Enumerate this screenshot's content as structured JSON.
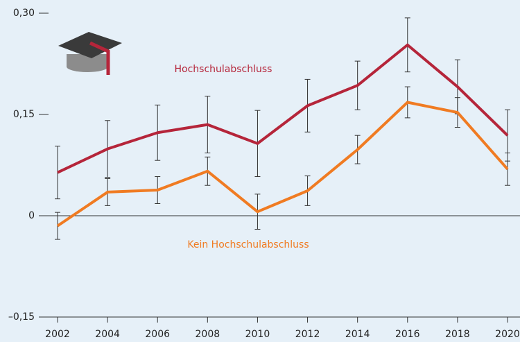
{
  "chart_data": {
    "type": "line",
    "x": [
      2002,
      2004,
      2006,
      2008,
      2010,
      2012,
      2014,
      2016,
      2018,
      2020
    ],
    "xlim": [
      2002,
      2020
    ],
    "xticks": [
      2002,
      2004,
      2006,
      2008,
      2010,
      2012,
      2014,
      2016,
      2018,
      2020
    ],
    "ylim": [
      -0.15,
      0.3
    ],
    "yticks": [
      {
        "value": -0.15,
        "label": "–0,15"
      },
      0,
      {
        "value": 0.15,
        "label": "0,15"
      },
      {
        "value": 0.3,
        "label": "0,30"
      }
    ],
    "series": [
      {
        "name": "Hochschulabschluss",
        "color": "#b5253a",
        "values": [
          0.064,
          0.099,
          0.123,
          0.135,
          0.107,
          0.163,
          0.193,
          0.253,
          0.191,
          0.119
        ],
        "errors": [
          0.039,
          0.042,
          0.041,
          0.042,
          0.049,
          0.039,
          0.036,
          0.04,
          0.04,
          0.038
        ]
      },
      {
        "name": "Kein Hochschulabschluss",
        "color": "#f07b22",
        "values": [
          -0.015,
          0.035,
          0.038,
          0.066,
          0.006,
          0.037,
          0.098,
          0.168,
          0.153,
          0.069
        ],
        "errors": [
          0.02,
          0.02,
          0.02,
          0.021,
          0.026,
          0.022,
          0.021,
          0.023,
          0.022,
          0.024
        ]
      }
    ]
  }
}
